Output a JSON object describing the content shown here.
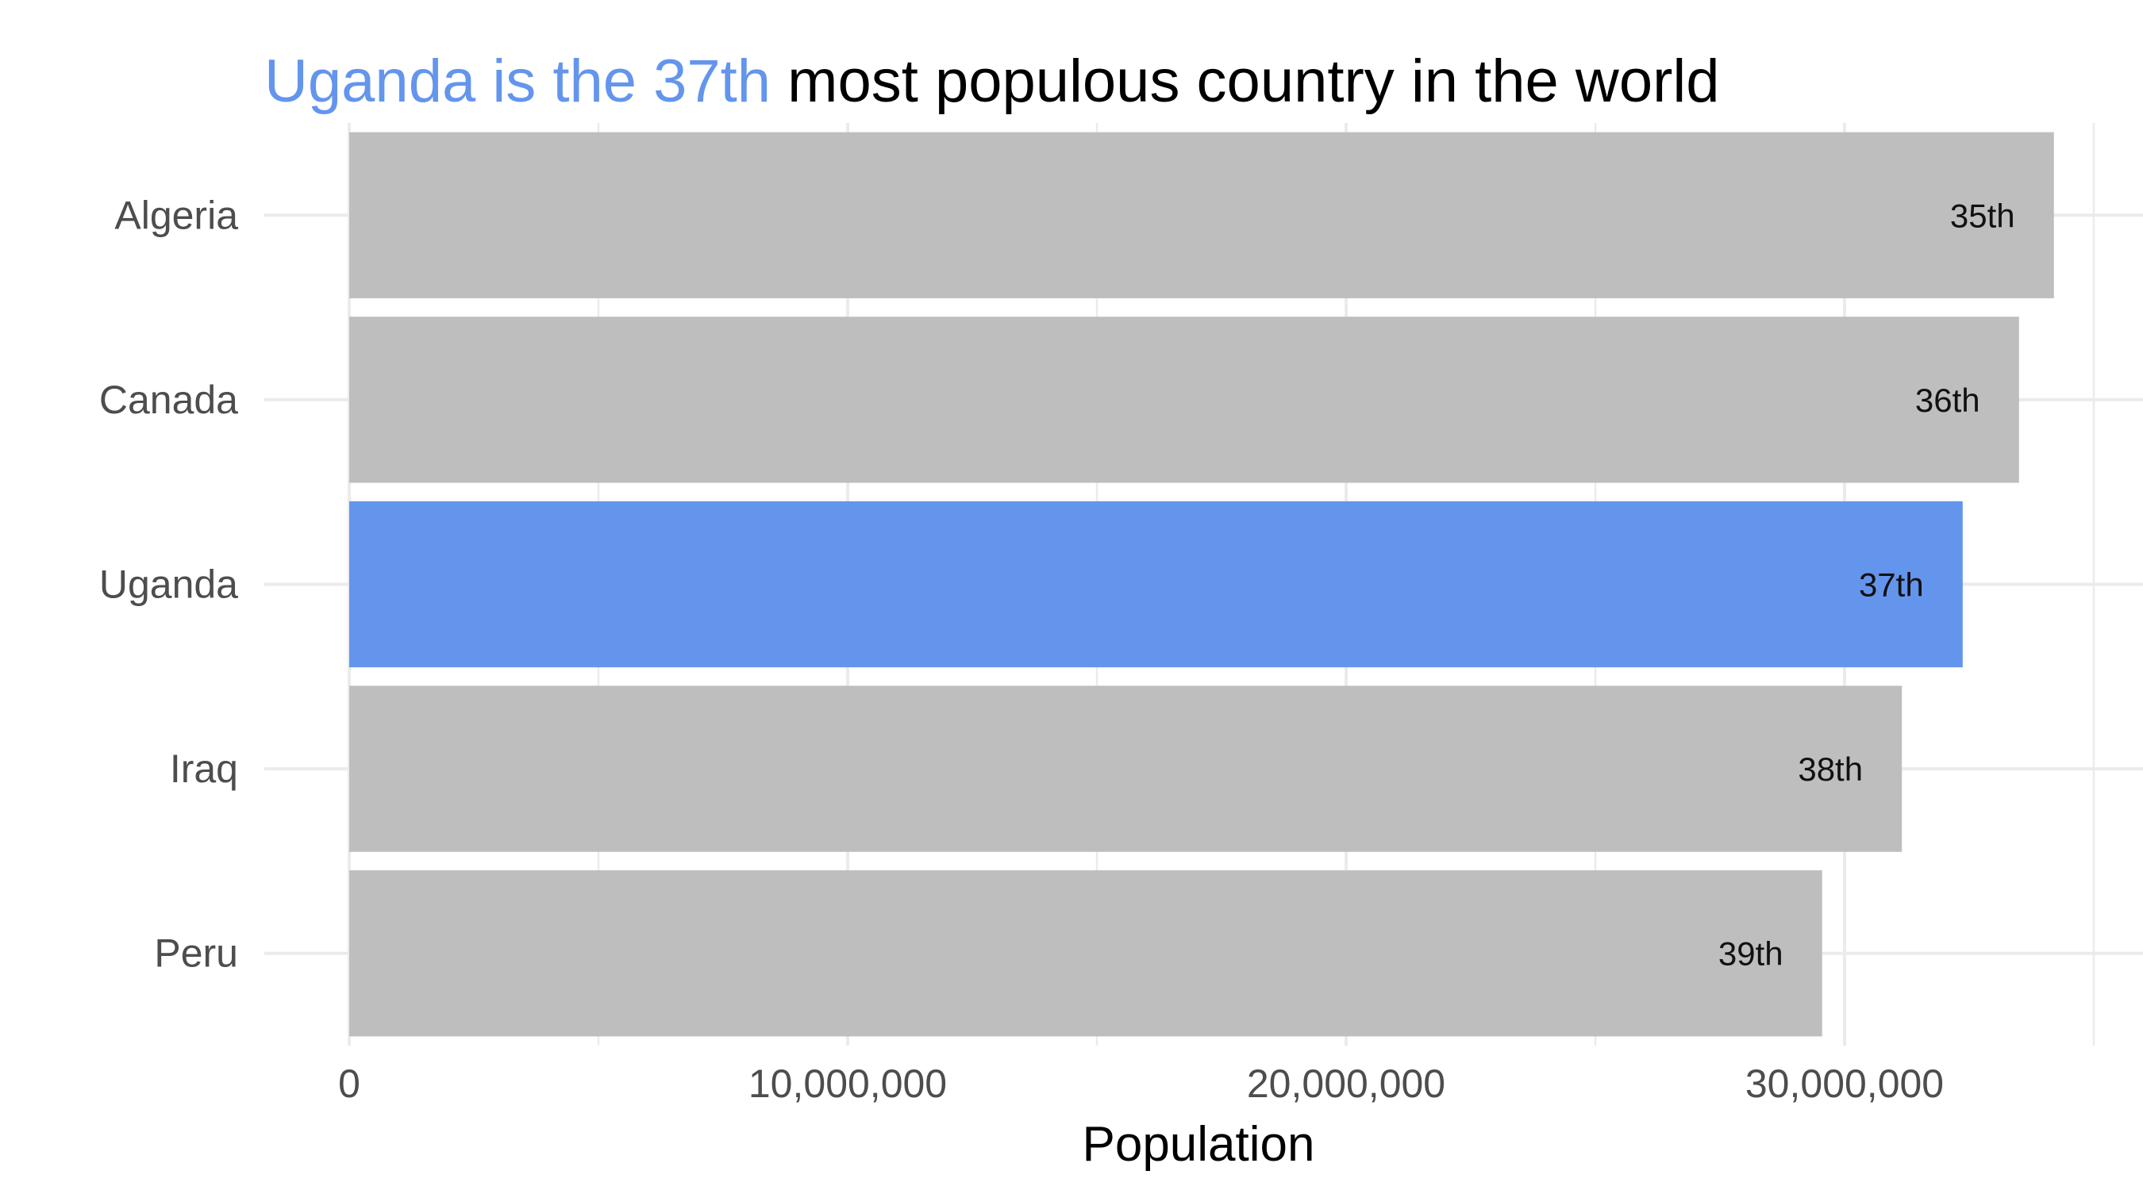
{
  "chart_data": {
    "type": "bar",
    "orientation": "horizontal",
    "title": {
      "highlight": "Uganda is the 37th",
      "rest": " most populous country in the world"
    },
    "categories": [
      "Algeria",
      "Canada",
      "Uganda",
      "Iraq",
      "Peru"
    ],
    "values": [
      34200000,
      33500000,
      32370000,
      31150000,
      29550000
    ],
    "rank_labels": [
      "35th",
      "36th",
      "37th",
      "38th",
      "39th"
    ],
    "highlight_category": "Uganda",
    "xlabel": "Population",
    "ylabel": "",
    "xlim": [
      0,
      35000000
    ],
    "x_ticks": [
      0,
      10000000,
      20000000,
      30000000
    ],
    "x_tick_labels": [
      "0",
      "10,000,000",
      "20,000,000",
      "30,000,000"
    ],
    "grid": true,
    "colors": {
      "highlight": "#6495ED",
      "bar": "#BEBEBE",
      "grid": "#EBEBEB",
      "title_rest": "#000000"
    }
  }
}
